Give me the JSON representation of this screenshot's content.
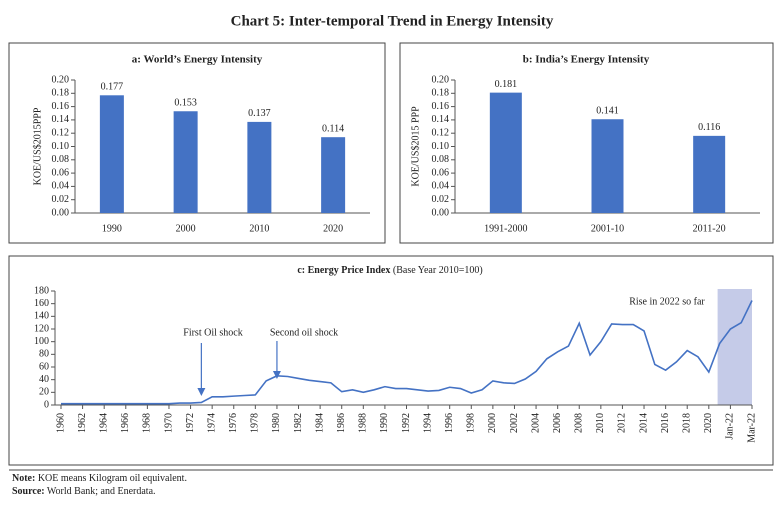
{
  "title": "Chart 5: Inter-temporal Trend in Energy Intensity",
  "chart_data": [
    {
      "type": "bar",
      "title": "a: World’s Energy Intensity",
      "ylabel": "KOE/US$2015PPP",
      "categories": [
        "1990",
        "2000",
        "2010",
        "2020"
      ],
      "values": [
        0.177,
        0.153,
        0.137,
        0.114
      ],
      "color": "#4472c4",
      "ylim": [
        0,
        0.2
      ],
      "yticks": [
        {
          "value": 0,
          "label": "0.00"
        },
        {
          "value": 0.02,
          "label": "0.02"
        },
        {
          "value": 0.04,
          "label": "0.04"
        },
        {
          "value": 0.06,
          "label": "0.06"
        },
        {
          "value": 0.08,
          "label": "0.08"
        },
        {
          "value": 0.1,
          "label": "0.10"
        },
        {
          "value": 0.12,
          "label": "0.12"
        },
        {
          "value": 0.14,
          "label": "0.14"
        },
        {
          "value": 0.16,
          "label": "0.16"
        },
        {
          "value": 0.18,
          "label": "0.18"
        },
        {
          "value": 0.2,
          "label": "0.20"
        }
      ]
    },
    {
      "type": "bar",
      "title": "b: India’s Energy Intensity",
      "ylabel": "KOE/US$2015 PPP",
      "categories": [
        "1991-2000",
        "2001-10",
        "2011-20"
      ],
      "values": [
        0.181,
        0.141,
        0.116
      ],
      "color": "#4472c4",
      "ylim": [
        0,
        0.2
      ],
      "yticks": [
        {
          "value": 0,
          "label": "0.00"
        },
        {
          "value": 0.02,
          "label": "0.02"
        },
        {
          "value": 0.04,
          "label": "0.04"
        },
        {
          "value": 0.06,
          "label": "0.06"
        },
        {
          "value": 0.08,
          "label": "0.08"
        },
        {
          "value": 0.1,
          "label": "0.10"
        },
        {
          "value": 0.12,
          "label": "0.12"
        },
        {
          "value": 0.14,
          "label": "0.14"
        },
        {
          "value": 0.16,
          "label": "0.16"
        },
        {
          "value": 0.18,
          "label": "0.18"
        },
        {
          "value": 0.2,
          "label": "0.20"
        }
      ]
    },
    {
      "type": "line",
      "title": "c: Energy Price Index",
      "subtitle": "(Base Year 2010=100)",
      "color": "#4472c4",
      "annotations": [
        "First Oil shock",
        "Second oil shock",
        "Rise in 2022 so far"
      ],
      "categories": [
        "1960",
        null,
        "1962",
        null,
        "1964",
        null,
        "1966",
        null,
        "1968",
        null,
        "1970",
        null,
        "1972",
        null,
        "1974",
        null,
        "1976",
        null,
        "1978",
        null,
        "1980",
        null,
        "1982",
        null,
        "1984",
        null,
        "1986",
        null,
        "1988",
        null,
        "1990",
        null,
        "1992",
        null,
        "1994",
        null,
        "1996",
        null,
        "1998",
        null,
        "2000",
        null,
        "2002",
        null,
        "2004",
        null,
        "2006",
        null,
        "2008",
        null,
        "2010",
        null,
        "2012",
        null,
        "2014",
        null,
        "2016",
        null,
        "2018",
        null,
        "2020",
        null,
        "Jan-22",
        null,
        "Mar-22"
      ],
      "values": [
        2,
        2,
        2,
        2,
        2,
        2,
        2,
        2,
        2,
        2,
        2,
        3,
        3,
        4,
        13,
        13,
        14,
        15,
        16,
        38,
        46,
        45,
        42,
        39,
        37,
        35,
        21,
        24,
        20,
        24,
        29,
        26,
        26,
        24,
        22,
        23,
        28,
        26,
        19,
        24,
        38,
        35,
        34,
        41,
        53,
        73,
        84,
        93,
        129,
        79,
        100,
        128,
        127,
        127,
        117,
        64,
        55,
        68,
        86,
        76,
        52,
        97,
        120,
        130,
        165
      ],
      "ylim": [
        0,
        180
      ],
      "yticks": [
        0,
        20,
        40,
        60,
        80,
        100,
        120,
        140,
        160,
        180
      ]
    }
  ],
  "notes": [
    {
      "label": "Note:",
      "text": "KOE means Kilogram oil equivalent."
    },
    {
      "label": "Source:",
      "text": "World Bank; and Enerdata."
    }
  ]
}
